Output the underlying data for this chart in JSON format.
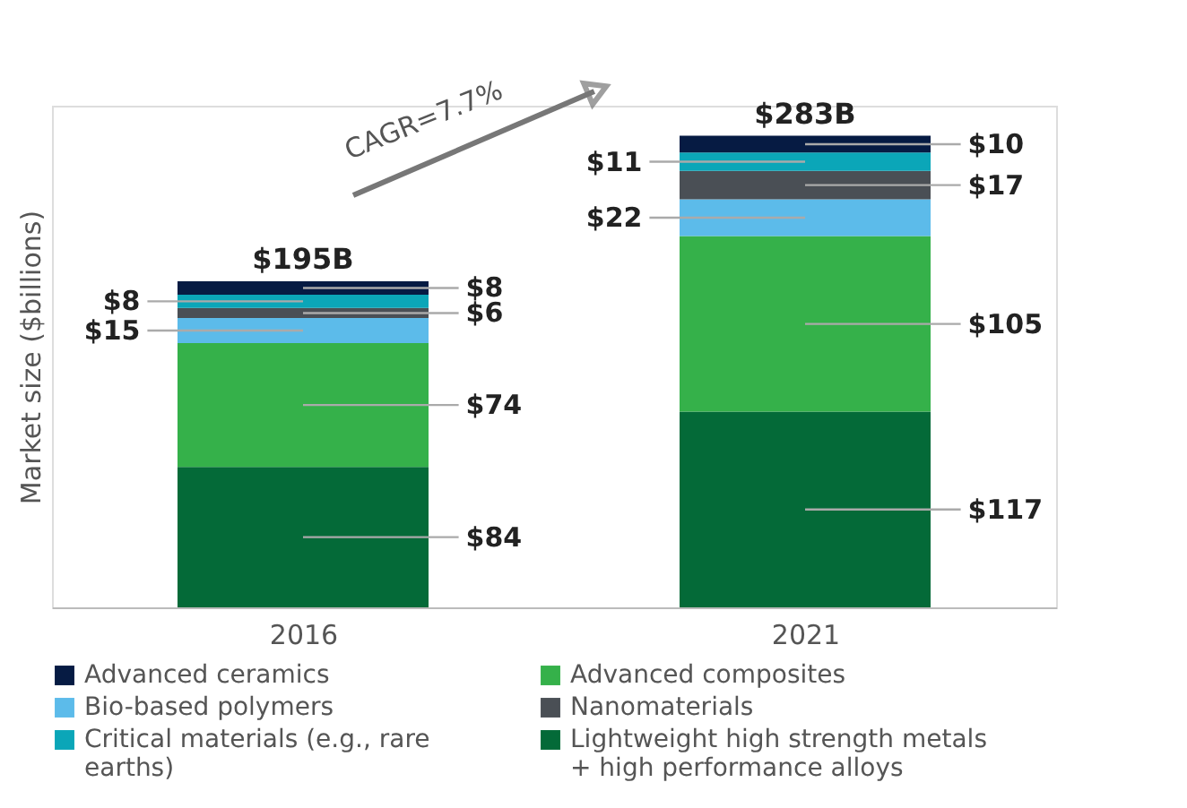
{
  "chart_data": {
    "type": "bar",
    "stacked": true,
    "ylabel": "Market size ($billions)",
    "categories": [
      "2016",
      "2021"
    ],
    "series": [
      {
        "name": "Lightweight high strength metals + high performance alloys",
        "color": "#046a38",
        "values": [
          84,
          117
        ],
        "value_labels": [
          "$84",
          "$117"
        ]
      },
      {
        "name": "Advanced composites",
        "color": "#35b14a",
        "values": [
          74,
          105
        ],
        "value_labels": [
          "$74",
          "$105"
        ]
      },
      {
        "name": "Bio-based polymers",
        "color": "#5cbbea",
        "values": [
          15,
          22
        ],
        "value_labels": [
          "$15",
          "$22"
        ]
      },
      {
        "name": "Nanomaterials",
        "color": "#4a4f55",
        "values": [
          6,
          17
        ],
        "value_labels": [
          "$6",
          "$17"
        ]
      },
      {
        "name": "Critical materials (e.g., rare earths)",
        "color": "#0ba6b8",
        "values": [
          8,
          11
        ],
        "value_labels": [
          "$8",
          "$11"
        ]
      },
      {
        "name": "Advanced ceramics",
        "color": "#061b43",
        "values": [
          8,
          10
        ],
        "value_labels": [
          "$8",
          "$10"
        ]
      }
    ],
    "totals": [
      "$195B",
      "$283B"
    ],
    "annotations": [
      "CAGR=7.7%"
    ],
    "tick_labels": "x",
    "grid": false,
    "legend": "bottom"
  }
}
